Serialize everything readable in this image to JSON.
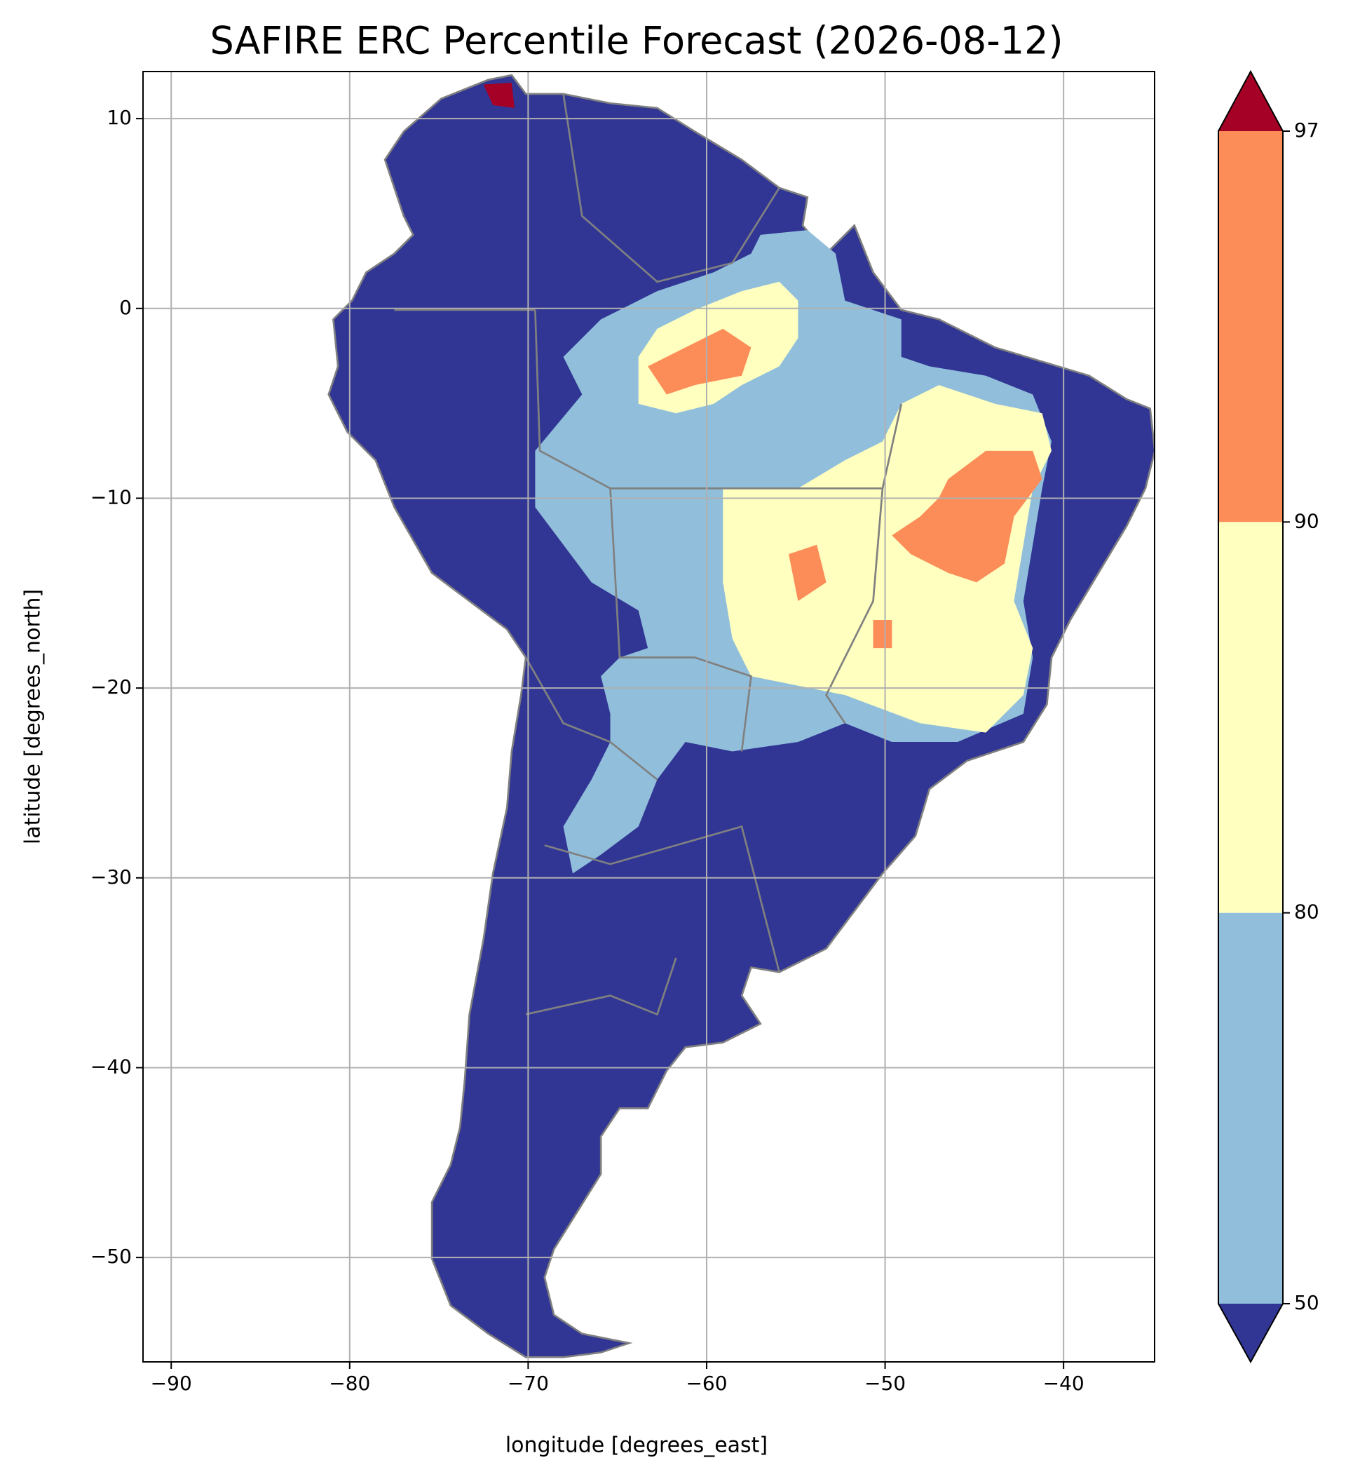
{
  "chart_data": {
    "type": "map",
    "title": "SAFIRE ERC Percentile Forecast (2026-08-12)",
    "x_label": "longitude [degrees_east]",
    "y_label": "latitude [degrees_north]",
    "xlim": [
      -91.58,
      -34.9
    ],
    "ylim": [
      -55.5,
      12.48
    ],
    "xticks": [
      {
        "value": -90,
        "label": "−90"
      },
      {
        "value": -80,
        "label": "−80"
      },
      {
        "value": -70,
        "label": "−70"
      },
      {
        "value": -60,
        "label": "−60"
      },
      {
        "value": -50,
        "label": "−50"
      },
      {
        "value": -40,
        "label": "−40"
      }
    ],
    "yticks": [
      10,
      0,
      {
        "value": -10,
        "label": "−10"
      },
      {
        "value": -20,
        "label": "−20"
      },
      {
        "value": -30,
        "label": "−30"
      },
      {
        "value": -40,
        "label": "−40"
      },
      {
        "value": -50,
        "label": "−50"
      }
    ],
    "grid": true,
    "colorbar": {
      "levels": [
        50,
        80,
        90,
        97
      ],
      "colors": [
        "#313695",
        "#91bfdb",
        "#ffffbf",
        "#fc8d59",
        "#a50026"
      ],
      "extend": "both"
    }
  }
}
